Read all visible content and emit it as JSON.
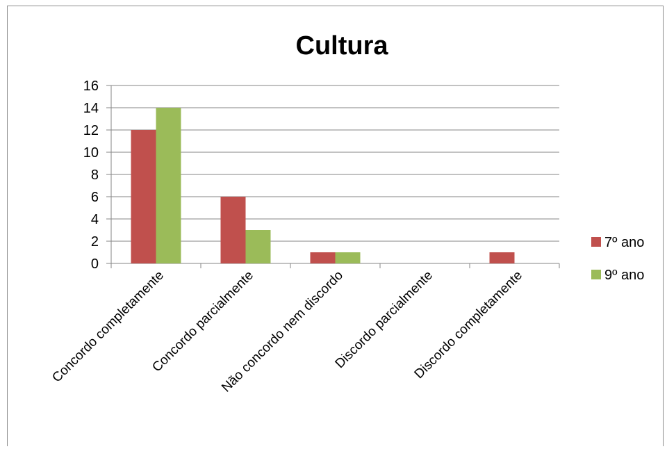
{
  "chart_data": {
    "type": "bar",
    "title": "Cultura",
    "categories": [
      "Concordo completamente",
      "Concordo parcialmente",
      "Não concordo nem discordo",
      "Discordo parcialmente",
      "Discordo completamente"
    ],
    "series": [
      {
        "name": "7º ano",
        "color": "#c0504d",
        "values": [
          12,
          6,
          1,
          0,
          1
        ]
      },
      {
        "name": "9º ano",
        "color": "#9bbb59",
        "values": [
          14,
          3,
          1,
          0,
          0
        ]
      }
    ],
    "ylim": [
      0,
      16
    ],
    "yticks": [
      "0",
      "2",
      "4",
      "6",
      "8",
      "10",
      "12",
      "14",
      "16"
    ],
    "grid": true,
    "legend_position": "right",
    "gridline_color": "#868686"
  }
}
